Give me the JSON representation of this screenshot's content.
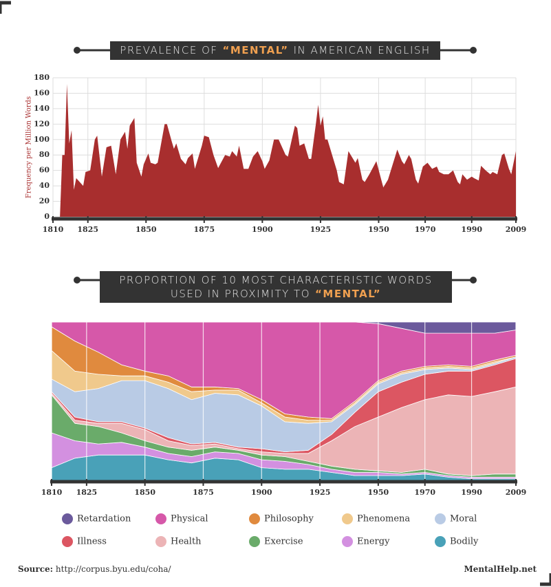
{
  "chart_data": [
    {
      "type": "area",
      "title": [
        "PREVALENCE OF",
        "“MENTAL”",
        "IN AMERICAN ENGLISH"
      ],
      "y_label": "Frequency per Million Words",
      "color": "#a82e2e",
      "x": [
        1813,
        1814,
        1815,
        1816,
        1817,
        1818,
        1819,
        1820,
        1823,
        1824,
        1826,
        1828,
        1829,
        1831,
        1833,
        1835,
        1837,
        1839,
        1841,
        1842,
        1843,
        1845,
        1846,
        1848,
        1849,
        1851,
        1852,
        1854,
        1855,
        1858,
        1859,
        1861,
        1862,
        1863,
        1865,
        1867,
        1868,
        1870,
        1871,
        1874,
        1875,
        1877,
        1879,
        1881,
        1884,
        1886,
        1887,
        1889,
        1890,
        1892,
        1894,
        1896,
        1898,
        1900,
        1901,
        1903,
        1905,
        1907,
        1910,
        1911,
        1914,
        1915,
        1916,
        1918,
        1920,
        1921,
        1923,
        1924,
        1925,
        1926,
        1927,
        1928,
        1930,
        1932,
        1933,
        1935,
        1937,
        1939,
        1940,
        1941,
        1943,
        1944,
        1946,
        1949,
        1952,
        1954,
        1958,
        1960,
        1961,
        1963,
        1964,
        1966,
        1967,
        1969,
        1971,
        1973,
        1975,
        1976,
        1978,
        1980,
        1982,
        1984,
        1985,
        1986,
        1988,
        1990,
        1991,
        1993,
        1994,
        1996,
        1998,
        1999,
        2001,
        2003,
        2004,
        2006,
        2007,
        2009
      ],
      "values": [
        0,
        80,
        80,
        172,
        95,
        112,
        35,
        50,
        40,
        58,
        60,
        100,
        105,
        52,
        90,
        92,
        55,
        100,
        110,
        88,
        118,
        128,
        70,
        52,
        68,
        82,
        70,
        68,
        70,
        120,
        120,
        98,
        88,
        95,
        75,
        68,
        76,
        82,
        62,
        92,
        105,
        103,
        80,
        63,
        80,
        78,
        85,
        78,
        92,
        62,
        62,
        78,
        85,
        72,
        62,
        73,
        100,
        100,
        80,
        78,
        118,
        115,
        92,
        95,
        75,
        75,
        120,
        145,
        118,
        130,
        100,
        100,
        80,
        60,
        45,
        42,
        85,
        75,
        70,
        76,
        48,
        45,
        55,
        72,
        38,
        48,
        87,
        72,
        68,
        80,
        75,
        48,
        43,
        65,
        70,
        62,
        65,
        58,
        55,
        55,
        60,
        45,
        42,
        55,
        48,
        52,
        50,
        47,
        66,
        60,
        55,
        58,
        55,
        80,
        82,
        62,
        55,
        85
      ],
      "xlim": [
        1810,
        2009
      ],
      "xticks": [
        1810,
        1825,
        1850,
        1875,
        1900,
        1925,
        1950,
        1970,
        1990,
        2009
      ],
      "ylim": [
        0,
        180
      ],
      "yticks": [
        0,
        20,
        40,
        60,
        80,
        100,
        120,
        140,
        160,
        180
      ],
      "grid": true
    },
    {
      "type": "stacked_area",
      "title": [
        [
          "PROPORTION OF 10 MOST CHARACTERISTIC WORDS"
        ],
        [
          "USED IN PROXIMITY TO",
          "“MENTAL”"
        ]
      ],
      "x": [
        1810,
        1820,
        1830,
        1840,
        1850,
        1860,
        1870,
        1880,
        1890,
        1900,
        1910,
        1920,
        1930,
        1940,
        1950,
        1960,
        1970,
        1980,
        1990,
        2000,
        2009
      ],
      "series": [
        {
          "name": "Retardation",
          "color": "#6b5a9c",
          "values": [
            0,
            0,
            0,
            0,
            0,
            0,
            0,
            0,
            0,
            0,
            0,
            0,
            0,
            0,
            1,
            4,
            7,
            7,
            7,
            7,
            5
          ]
        },
        {
          "name": "Physical",
          "color": "#d658a9",
          "values": [
            3,
            12,
            19,
            27,
            31,
            34,
            41,
            41,
            42,
            49,
            58,
            60,
            61,
            50,
            36,
            27,
            21,
            20,
            21,
            17,
            16
          ]
        },
        {
          "name": "Philosophy",
          "color": "#e08a3e",
          "values": [
            15,
            19,
            14,
            7,
            3,
            4,
            3,
            2,
            1,
            2,
            2,
            2,
            1,
            1,
            1,
            1,
            1,
            1,
            1,
            1,
            1
          ]
        },
        {
          "name": "Phenomena",
          "color": "#f0c98c",
          "values": [
            18,
            13,
            9,
            3,
            3,
            4,
            5,
            2,
            3,
            2,
            3,
            2,
            1,
            1,
            1,
            1,
            1,
            1,
            1,
            1,
            0
          ]
        },
        {
          "name": "Moral",
          "color": "#b9cbe5",
          "values": [
            8,
            16,
            21,
            26,
            30,
            31,
            28,
            31,
            33,
            27,
            19,
            17,
            8,
            5,
            5,
            5,
            3,
            2,
            1,
            1,
            1
          ]
        },
        {
          "name": "Illness",
          "color": "#dc5662",
          "values": [
            1,
            2,
            1,
            1,
            1,
            2,
            1,
            1,
            1,
            2,
            1,
            2,
            4,
            9,
            16,
            16,
            16,
            15,
            16,
            17,
            18
          ]
        },
        {
          "name": "Health",
          "color": "#ecb4b6",
          "values": [
            1,
            2,
            2,
            6,
            7,
            4,
            3,
            2,
            1,
            2,
            2,
            5,
            16,
            27,
            34,
            41,
            44,
            50,
            50,
            52,
            55
          ]
        },
        {
          "name": "Exercise",
          "color": "#6aab6a",
          "values": [
            24,
            11,
            11,
            6,
            4,
            4,
            4,
            3,
            2,
            3,
            3,
            2,
            2,
            2,
            1,
            1,
            2,
            1,
            1,
            2,
            2
          ]
        },
        {
          "name": "Energy",
          "color": "#d390e0",
          "values": [
            22,
            11,
            7,
            8,
            5,
            4,
            4,
            4,
            4,
            5,
            5,
            3,
            2,
            2,
            2,
            1,
            1,
            1,
            1,
            1,
            1
          ]
        },
        {
          "name": "Bodily",
          "color": "#49a1b8",
          "values": [
            8,
            14,
            16,
            16,
            16,
            13,
            11,
            14,
            13,
            8,
            7,
            7,
            5,
            3,
            3,
            3,
            4,
            2,
            1,
            1,
            1
          ]
        }
      ],
      "xlim": [
        1810,
        2009
      ],
      "xticks": [
        1810,
        1825,
        1850,
        1875,
        1900,
        1925,
        1950,
        1970,
        1990,
        2009
      ],
      "ylim": [
        0,
        100
      ],
      "grid": true
    }
  ],
  "footer": {
    "source_label": "Source:",
    "source_url": "http://corpus.byu.edu/coha/",
    "brand": "MentalHelp.net"
  }
}
